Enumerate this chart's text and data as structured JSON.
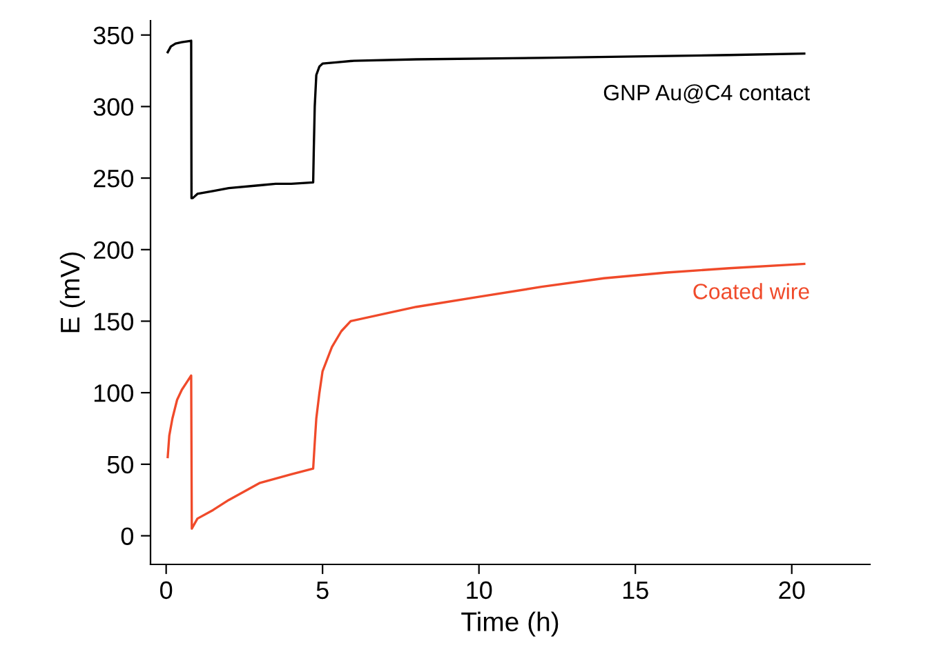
{
  "chart_data": {
    "type": "line",
    "xlabel": "Time (h)",
    "ylabel": "E (mV)",
    "xlim": [
      -0.5,
      22.5
    ],
    "ylim": [
      -20,
      360
    ],
    "xticks": [
      0,
      5,
      10,
      15,
      20
    ],
    "yticks": [
      0,
      50,
      100,
      150,
      200,
      250,
      300,
      350
    ],
    "grid": false,
    "legend": false,
    "marker": "none",
    "line_style": "solid",
    "series": [
      {
        "name": "GNP Au@C4 contact",
        "color": "#000000",
        "x": [
          0.05,
          0.15,
          0.3,
          0.5,
          0.8,
          0.81,
          0.85,
          1.0,
          1.5,
          2.0,
          3.0,
          3.5,
          4.0,
          4.7,
          4.72,
          4.75,
          4.8,
          4.9,
          5.0,
          5.5,
          6,
          8,
          12,
          18,
          20.4
        ],
        "values": [
          338,
          342,
          344,
          345,
          346,
          236,
          236,
          239,
          241,
          243,
          245,
          246,
          246,
          247,
          270,
          300,
          322,
          328,
          330,
          331,
          332,
          333,
          334,
          336,
          337
        ]
      },
      {
        "name": "Coated wire",
        "color": "#f04a2a",
        "x": [
          0.05,
          0.1,
          0.2,
          0.35,
          0.5,
          0.65,
          0.8,
          0.82,
          1.0,
          1.5,
          2.0,
          2.5,
          3.0,
          3.5,
          4.0,
          4.7,
          4.75,
          4.8,
          4.9,
          5.0,
          5.3,
          5.6,
          5.9,
          8,
          10,
          12,
          14,
          16,
          18,
          20.4
        ],
        "values": [
          55,
          70,
          82,
          95,
          102,
          107,
          112,
          5,
          12,
          18,
          25,
          31,
          37,
          40,
          43,
          47,
          65,
          82,
          100,
          115,
          132,
          143,
          150,
          160,
          167,
          174,
          180,
          184,
          187,
          190
        ]
      }
    ]
  }
}
